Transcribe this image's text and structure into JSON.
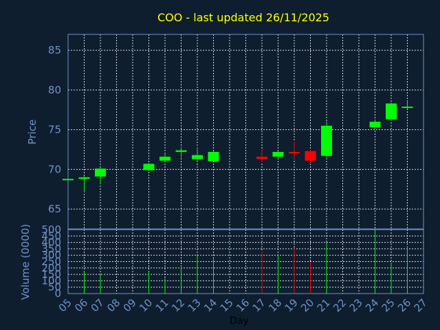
{
  "chart_data": {
    "type": "candlestick",
    "title": "COO - last updated 26/11/2025",
    "xlabel": "Day",
    "price_panel": {
      "ylabel": "Price",
      "ylim": [
        62.5,
        87.0
      ],
      "yticks": [
        65,
        70,
        75,
        80,
        85
      ]
    },
    "volume_panel": {
      "ylabel": "Volume (0000)",
      "ylim": [
        0,
        500
      ],
      "yticks": [
        0,
        50,
        100,
        150,
        200,
        250,
        300,
        350,
        400,
        450,
        500
      ]
    },
    "x_ticks": [
      "05",
      "06",
      "07",
      "08",
      "09",
      "10",
      "11",
      "12",
      "13",
      "14",
      "15",
      "16",
      "17",
      "18",
      "19",
      "20",
      "21",
      "22",
      "23",
      "24",
      "25",
      "26",
      "27"
    ],
    "candles": [
      {
        "day": "05",
        "open": 68.7,
        "high": 68.8,
        "low": 68.6,
        "close": 68.8,
        "volume": 0
      },
      {
        "day": "06",
        "open": 68.8,
        "high": 69.2,
        "low": 67.1,
        "close": 69.0,
        "volume": 175
      },
      {
        "day": "07",
        "open": 69.1,
        "high": 70.2,
        "low": 68.2,
        "close": 70.1,
        "volume": 150
      },
      {
        "day": "10",
        "open": 69.9,
        "high": 70.8,
        "low": 69.8,
        "close": 70.7,
        "volume": 170
      },
      {
        "day": "11",
        "open": 71.1,
        "high": 72.0,
        "low": 71.0,
        "close": 71.6,
        "volume": 120
      },
      {
        "day": "12",
        "open": 72.2,
        "high": 72.8,
        "low": 71.5,
        "close": 72.4,
        "volume": 200
      },
      {
        "day": "13",
        "open": 71.3,
        "high": 72.8,
        "low": 71.0,
        "close": 71.8,
        "volume": 300
      },
      {
        "day": "14",
        "open": 71.0,
        "high": 72.3,
        "low": 71.0,
        "close": 72.2,
        "volume": 270
      },
      {
        "day": "17",
        "open": 71.6,
        "high": 72.6,
        "low": 70.9,
        "close": 71.3,
        "volume": 330
      },
      {
        "day": "18",
        "open": 71.6,
        "high": 72.3,
        "low": 71.5,
        "close": 72.2,
        "volume": 300
      },
      {
        "day": "19",
        "open": 72.2,
        "high": 73.5,
        "low": 71.2,
        "close": 72.0,
        "volume": 360
      },
      {
        "day": "20",
        "open": 72.3,
        "high": 72.5,
        "low": 70.8,
        "close": 71.1,
        "volume": 245
      },
      {
        "day": "21",
        "open": 71.7,
        "high": 76.0,
        "low": 71.5,
        "close": 75.5,
        "volume": 400
      },
      {
        "day": "24",
        "open": 75.3,
        "high": 76.2,
        "low": 75.1,
        "close": 76.0,
        "volume": 500
      },
      {
        "day": "25",
        "open": 76.3,
        "high": 78.4,
        "low": 76.1,
        "close": 78.3,
        "volume": 240
      },
      {
        "day": "26",
        "open": 77.8,
        "high": 78.6,
        "low": 77.6,
        "close": 77.9,
        "volume": 370
      }
    ],
    "colors": {
      "background": "#0e1e2f",
      "up": "#00ff00",
      "down": "#ff0000",
      "title": "#ffff00",
      "axis": "#6f93c9",
      "grid": "#ffffff"
    }
  }
}
